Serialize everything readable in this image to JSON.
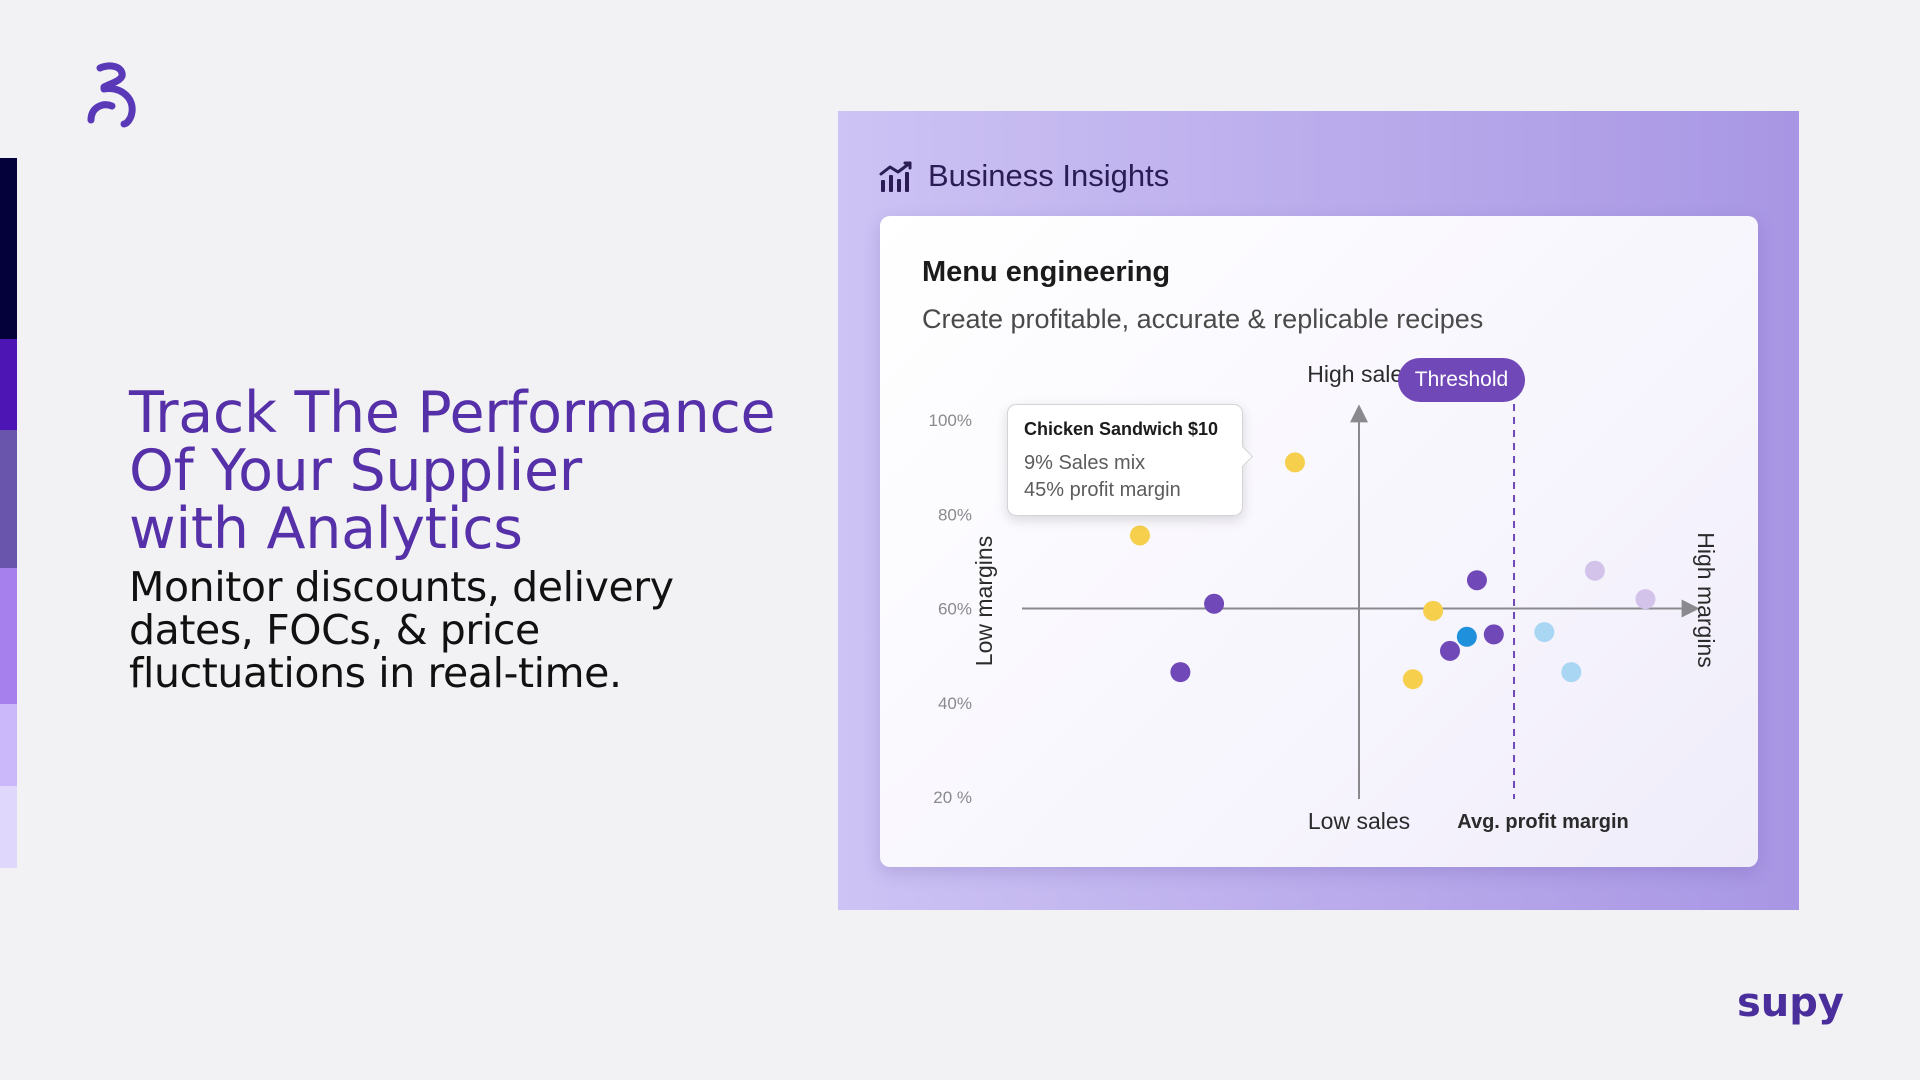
{
  "hero": {
    "title_lines": [
      "Track The Performance",
      "Of Your Supplier",
      "with Analytics"
    ],
    "subtitle": "Monitor discounts, delivery dates, FOCs, & price fluctuations in real-time."
  },
  "panel": {
    "icon": "bar-chart-trend-icon",
    "title": "Business Insights"
  },
  "card": {
    "title": "Menu engineering",
    "subtitle": "Create profitable, accurate & replicable recipes"
  },
  "tooltip": {
    "title": "Chicken Sandwich $10",
    "lines": [
      "9% Sales mix",
      "45% profit margin"
    ]
  },
  "threshold_label": "Threshold",
  "brand": {
    "name": "supy"
  },
  "colors": {
    "accent": "#5530a8",
    "stripes": [
      "#03003a",
      "#4c15b4",
      "#6a55ac",
      "#a680ec",
      "#cbb8fa",
      "#e0d7fc"
    ],
    "purple": "#7048b8",
    "yellow": "#f6cf4d",
    "blue": "#1e90dc",
    "light_blue": "#a9d6f3",
    "lavender": "#d3c3ea"
  },
  "chart_data": {
    "type": "scatter",
    "title": "Menu engineering",
    "xlabel": "Low sales",
    "ylabel": "Low margins",
    "x_axis_labels": {
      "top": "High sales",
      "bottom": "Low sales",
      "left": "Low margins",
      "right": "High margins"
    },
    "y_ticks": [
      "100%",
      "80%",
      "60%",
      "40%",
      "20 %"
    ],
    "y_tick_values": [
      100,
      80,
      60,
      40,
      20
    ],
    "ylim": [
      20,
      100
    ],
    "xlim": [
      0,
      100
    ],
    "threshold": {
      "x": 73,
      "label": "Threshold",
      "caption": "Avg. profit margin"
    },
    "center": {
      "x": 50,
      "y": 60
    },
    "series": [
      {
        "name": "yellow",
        "color": "#f6cf4d",
        "points": [
          {
            "x": 40.5,
            "y": 91
          },
          {
            "x": 17.5,
            "y": 75.5
          },
          {
            "x": 61,
            "y": 59.5
          },
          {
            "x": 58,
            "y": 45
          }
        ]
      },
      {
        "name": "purple",
        "color": "#7048b8",
        "points": [
          {
            "x": 28.5,
            "y": 61
          },
          {
            "x": 23.5,
            "y": 46.5
          },
          {
            "x": 67.5,
            "y": 66
          },
          {
            "x": 63.5,
            "y": 51
          },
          {
            "x": 70,
            "y": 54.5
          }
        ]
      },
      {
        "name": "blue",
        "color": "#1e90dc",
        "points": [
          {
            "x": 66,
            "y": 54
          }
        ]
      },
      {
        "name": "light-blue",
        "color": "#a9d6f3",
        "points": [
          {
            "x": 77.5,
            "y": 55
          },
          {
            "x": 81.5,
            "y": 46.5
          }
        ]
      },
      {
        "name": "lavender",
        "color": "#d3c3ea",
        "points": [
          {
            "x": 85,
            "y": 68
          },
          {
            "x": 92.5,
            "y": 62
          }
        ]
      }
    ]
  }
}
